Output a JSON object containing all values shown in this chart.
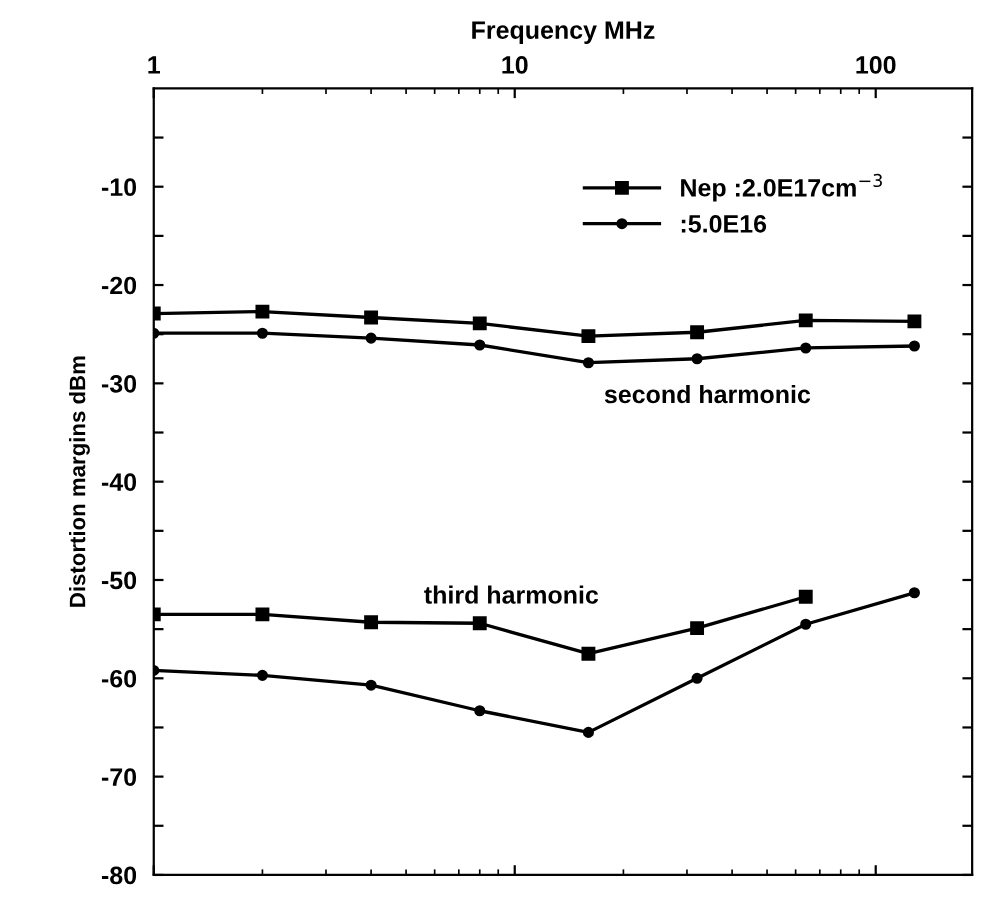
{
  "chart_data": {
    "type": "line",
    "xlabel": "Frequency MHz",
    "ylabel": "Distortion margins dBm",
    "log": "x",
    "xlim": [
      1,
      185
    ],
    "xticks": [
      1,
      10,
      100
    ],
    "ylim": [
      -80,
      0
    ],
    "yticks": [
      -80,
      {
        "value": -75,
        "label": null
      },
      -70,
      {
        "value": -65,
        "label": null
      },
      -60,
      {
        "value": -55,
        "label": null
      },
      -50,
      {
        "value": -45,
        "label": null
      },
      -40,
      {
        "value": -35,
        "label": null
      },
      -30,
      {
        "value": -25,
        "label": null
      },
      -20,
      {
        "value": -15,
        "label": null
      },
      -10,
      {
        "value": -5,
        "label": null
      }
    ],
    "grid": false,
    "legend": "top right",
    "line_style": "solid",
    "x": [
      1,
      2,
      4,
      8,
      16,
      32,
      64,
      128
    ],
    "series": [
      {
        "name": "Nep :2.0E17cm$^{−3}$",
        "color": "#000000",
        "marker": "square",
        "values": [
          -22.9,
          -22.7,
          -23.3,
          -23.9,
          -25.2,
          -24.8,
          -23.6,
          -23.7
        ]
      },
      {
        "name": ":5.0E16",
        "color": "#000000",
        "marker": "circle",
        "values": [
          -24.9,
          -24.9,
          -25.4,
          -26.1,
          -27.9,
          -27.5,
          -26.4,
          -26.2
        ]
      },
      {
        "color": "#000000",
        "marker": "square",
        "values": [
          -53.5,
          -53.5,
          -54.3,
          -54.4,
          -57.5,
          -54.9,
          -51.7,
          null
        ]
      },
      {
        "color": "#000000",
        "marker": "circle",
        "values": [
          -59.2,
          -59.7,
          -60.7,
          -63.3,
          -65.5,
          -60.0,
          -54.5,
          -51.3
        ]
      }
    ],
    "annotations": [
      "second harmonic",
      "third harmonic"
    ]
  }
}
